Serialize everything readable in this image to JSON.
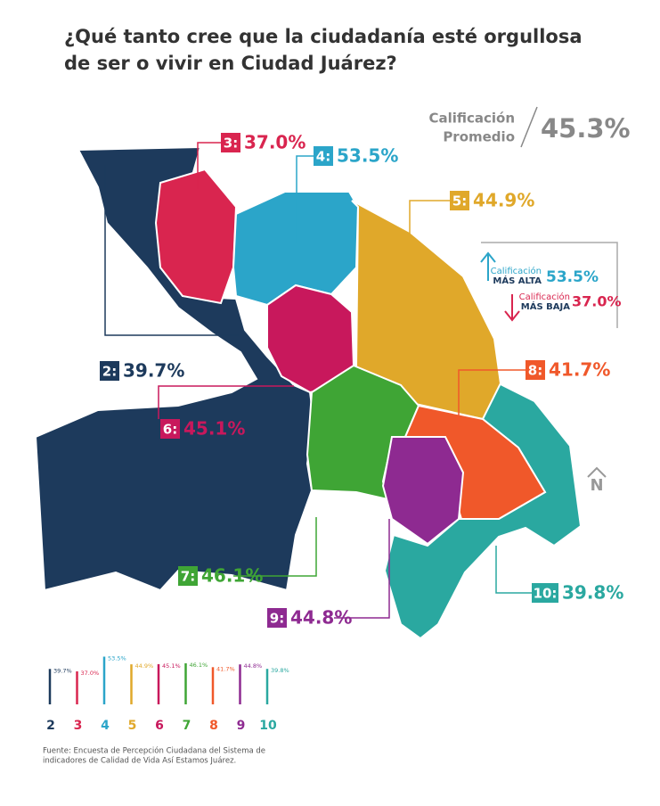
{
  "title": [
    "¿Qué tanto cree que la ciudadanía esté orgullosa",
    "de ser o vivir en Ciudad Juárez?"
  ],
  "average": {
    "label": [
      "Calificación",
      "Promedio"
    ],
    "value": "45.3%"
  },
  "highest": {
    "label": "Calificación",
    "sub": "MÁS ALTA",
    "value": "53.5%"
  },
  "lowest": {
    "label": "Calificación",
    "sub": "MÁS BAJA",
    "value": "37.0%"
  },
  "north": "N",
  "districts": [
    {
      "tag": "2:",
      "value": "39.7%",
      "color": "#1d3a5c"
    },
    {
      "tag": "3:",
      "value": "37.0%",
      "color": "#d9254f"
    },
    {
      "tag": "4:",
      "value": "53.5%",
      "color": "#2ba5c9"
    },
    {
      "tag": "5:",
      "value": "44.9%",
      "color": "#e0a82a"
    },
    {
      "tag": "6:",
      "value": "45.1%",
      "color": "#c8185c"
    },
    {
      "tag": "7:",
      "value": "46.1%",
      "color": "#3fa535"
    },
    {
      "tag": "8:",
      "value": "41.7%",
      "color": "#f0582a"
    },
    {
      "tag": "9:",
      "value": "44.8%",
      "color": "#8e2a91"
    },
    {
      "tag": "10:",
      "value": "39.8%",
      "color": "#2aa8a0"
    }
  ],
  "legend_chart": {
    "categories": [
      "2",
      "3",
      "4",
      "5",
      "6",
      "7",
      "8",
      "9",
      "10"
    ],
    "values": [
      39.7,
      37.0,
      53.5,
      44.9,
      45.1,
      46.1,
      41.7,
      44.8,
      39.8
    ],
    "value_labels": [
      "39.7%",
      "37.0%",
      "53.5%",
      "44.9%",
      "45.1%",
      "46.1%",
      "41.7%",
      "44.8%",
      "39.8%"
    ]
  },
  "source": [
    "Fuente: Encuesta de Percepción Ciudadana del Sistema de",
    "indicadores de Calidad de Vida Así Estamos Juárez."
  ]
}
